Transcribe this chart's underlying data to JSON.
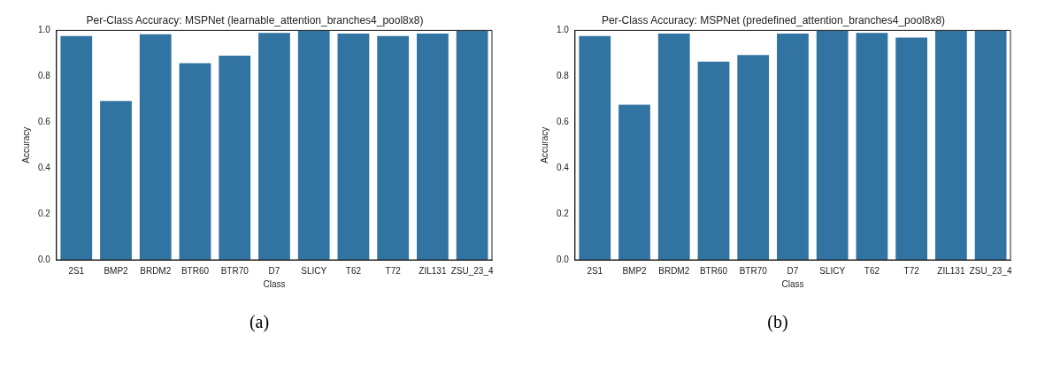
{
  "chart_data": [
    {
      "type": "bar",
      "title": "Per-Class Accuracy: MSPNet (learnable_attention_branches4_pool8x8)",
      "xlabel": "Class",
      "ylabel": "Accuracy",
      "categories": [
        "2S1",
        "BMP2",
        "BRDM2",
        "BTR60",
        "BTR70",
        "D7",
        "SLICY",
        "T62",
        "T72",
        "ZIL131",
        "ZSU_23_4"
      ],
      "values": [
        0.976,
        0.692,
        0.983,
        0.857,
        0.89,
        0.989,
        1.0,
        0.986,
        0.976,
        0.986,
        1.0
      ],
      "color": "#3274a1",
      "ylim": [
        0,
        1
      ],
      "yticks": [
        {
          "value": 0,
          "label": "0.0"
        },
        {
          "value": 0.2,
          "label": "0.2"
        },
        {
          "value": 0.4,
          "label": "0.4"
        },
        {
          "value": 0.6,
          "label": "0.6"
        },
        {
          "value": 0.8,
          "label": "0.8"
        },
        {
          "value": 1,
          "label": "1.0"
        }
      ],
      "grid": false,
      "legend": false,
      "annotations": [
        "(a)"
      ]
    },
    {
      "type": "bar",
      "title": "Per-Class Accuracy: MSPNet (predefined_attention_branches4_pool8x8)",
      "xlabel": "Class",
      "ylabel": "Accuracy",
      "categories": [
        "2S1",
        "BMP2",
        "BRDM2",
        "BTR60",
        "BTR70",
        "D7",
        "SLICY",
        "T62",
        "T72",
        "ZIL131",
        "ZSU_23_4"
      ],
      "values": [
        0.976,
        0.676,
        0.986,
        0.864,
        0.893,
        0.986,
        1.0,
        0.989,
        0.969,
        1.0,
        1.0
      ],
      "color": "#3274a1",
      "ylim": [
        0,
        1
      ],
      "yticks": [
        {
          "value": 0,
          "label": "0.0"
        },
        {
          "value": 0.2,
          "label": "0.2"
        },
        {
          "value": 0.4,
          "label": "0.4"
        },
        {
          "value": 0.6,
          "label": "0.6"
        },
        {
          "value": 0.8,
          "label": "0.8"
        },
        {
          "value": 1,
          "label": "1.0"
        }
      ],
      "grid": false,
      "legend": false,
      "annotations": [
        "(b)"
      ]
    }
  ]
}
